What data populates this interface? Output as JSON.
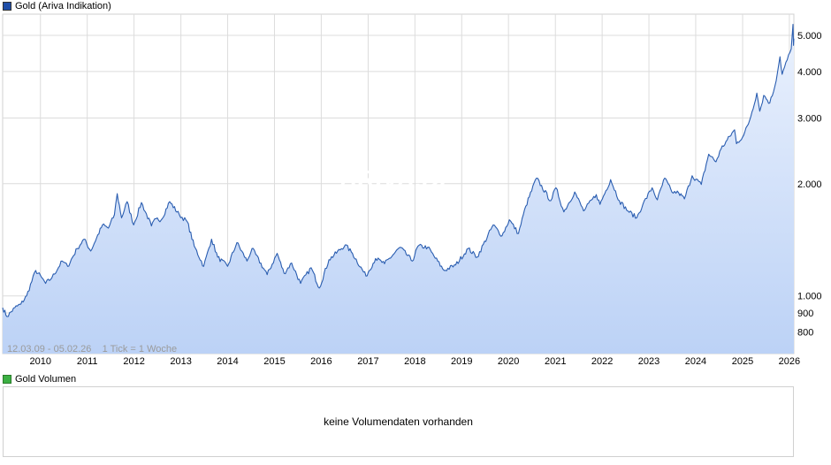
{
  "legend": {
    "main_label": "Gold (Ariva Indikation)",
    "main_color": "#1f4ea8",
    "volume_label": "Gold Volumen",
    "volume_color": "#3cb043"
  },
  "watermark": "ARIVA.DE",
  "range_info": "12.03.09 - 05.02.26    1 Tick = 1 Woche",
  "volume_message": "keine Volumendaten vorhanden",
  "colors": {
    "line": "#2a5db0",
    "fill_top": "#eaf1fd",
    "fill_bottom": "#bcd2f6",
    "grid": "#dcdcdc"
  },
  "chart_data": {
    "type": "area",
    "title": "Gold (Ariva Indikation)",
    "yscale": "log",
    "ylim": [
      700,
      5700
    ],
    "xlim": [
      "2009-03-12",
      "2026-02-05"
    ],
    "grid": true,
    "yticks": [
      {
        "value": 800,
        "label": "800"
      },
      {
        "value": 900,
        "label": "900"
      },
      {
        "value": 1000,
        "label": "1.000"
      },
      {
        "value": 2000,
        "label": "2.000"
      },
      {
        "value": 3000,
        "label": "3.000"
      },
      {
        "value": 4000,
        "label": "4.000"
      },
      {
        "value": 5000,
        "label": "5.000"
      }
    ],
    "xticks": [
      "2010",
      "2011",
      "2012",
      "2013",
      "2014",
      "2015",
      "2016",
      "2017",
      "2018",
      "2019",
      "2020",
      "2021",
      "2022",
      "2023",
      "2024",
      "2025",
      "2026"
    ],
    "series": [
      {
        "name": "Gold",
        "points": [
          [
            "2009-03-12",
            930
          ],
          [
            "2009-04-15",
            880
          ],
          [
            "2009-06-15",
            930
          ],
          [
            "2009-08-01",
            950
          ],
          [
            "2009-09-15",
            1000
          ],
          [
            "2009-11-25",
            1170
          ],
          [
            "2010-01-10",
            1120
          ],
          [
            "2010-02-10",
            1080
          ],
          [
            "2010-04-01",
            1120
          ],
          [
            "2010-06-20",
            1240
          ],
          [
            "2010-08-01",
            1200
          ],
          [
            "2010-10-15",
            1340
          ],
          [
            "2010-12-07",
            1420
          ],
          [
            "2011-01-28",
            1320
          ],
          [
            "2011-04-30",
            1550
          ],
          [
            "2011-06-15",
            1520
          ],
          [
            "2011-08-01",
            1650
          ],
          [
            "2011-08-23",
            1880
          ],
          [
            "2011-09-26",
            1620
          ],
          [
            "2011-11-08",
            1790
          ],
          [
            "2011-12-29",
            1550
          ],
          [
            "2012-02-28",
            1780
          ],
          [
            "2012-05-16",
            1540
          ],
          [
            "2012-06-20",
            1610
          ],
          [
            "2012-08-01",
            1600
          ],
          [
            "2012-10-05",
            1790
          ],
          [
            "2012-12-20",
            1650
          ],
          [
            "2013-02-20",
            1580
          ],
          [
            "2013-04-15",
            1360
          ],
          [
            "2013-06-28",
            1200
          ],
          [
            "2013-08-28",
            1420
          ],
          [
            "2013-10-15",
            1270
          ],
          [
            "2013-12-31",
            1200
          ],
          [
            "2014-03-14",
            1390
          ],
          [
            "2014-06-01",
            1240
          ],
          [
            "2014-07-10",
            1340
          ],
          [
            "2014-11-05",
            1140
          ],
          [
            "2015-01-22",
            1300
          ],
          [
            "2015-03-17",
            1150
          ],
          [
            "2015-05-15",
            1225
          ],
          [
            "2015-07-24",
            1080
          ],
          [
            "2015-10-14",
            1190
          ],
          [
            "2015-12-17",
            1050
          ],
          [
            "2016-03-01",
            1250
          ],
          [
            "2016-07-06",
            1370
          ],
          [
            "2016-09-01",
            1300
          ],
          [
            "2016-12-15",
            1130
          ],
          [
            "2017-02-28",
            1260
          ],
          [
            "2017-05-09",
            1220
          ],
          [
            "2017-09-08",
            1350
          ],
          [
            "2017-12-12",
            1240
          ],
          [
            "2018-01-25",
            1360
          ],
          [
            "2018-04-11",
            1350
          ],
          [
            "2018-08-16",
            1170
          ],
          [
            "2018-11-15",
            1210
          ],
          [
            "2019-02-20",
            1340
          ],
          [
            "2019-05-01",
            1270
          ],
          [
            "2019-09-04",
            1550
          ],
          [
            "2019-11-12",
            1450
          ],
          [
            "2020-01-08",
            1600
          ],
          [
            "2020-03-19",
            1470
          ],
          [
            "2020-05-15",
            1740
          ],
          [
            "2020-08-06",
            2070
          ],
          [
            "2020-11-25",
            1800
          ],
          [
            "2021-01-06",
            1950
          ],
          [
            "2021-03-08",
            1680
          ],
          [
            "2021-06-01",
            1900
          ],
          [
            "2021-08-09",
            1690
          ],
          [
            "2021-11-16",
            1870
          ],
          [
            "2021-12-15",
            1760
          ],
          [
            "2022-03-08",
            2050
          ],
          [
            "2022-05-15",
            1800
          ],
          [
            "2022-07-21",
            1690
          ],
          [
            "2022-09-28",
            1620
          ],
          [
            "2022-11-15",
            1760
          ],
          [
            "2023-01-26",
            1950
          ],
          [
            "2023-03-08",
            1810
          ],
          [
            "2023-05-04",
            2070
          ],
          [
            "2023-06-29",
            1900
          ],
          [
            "2023-08-21",
            1890
          ],
          [
            "2023-10-05",
            1820
          ],
          [
            "2023-12-04",
            2100
          ],
          [
            "2024-02-14",
            1990
          ],
          [
            "2024-04-12",
            2400
          ],
          [
            "2024-06-07",
            2290
          ],
          [
            "2024-07-17",
            2480
          ],
          [
            "2024-10-30",
            2790
          ],
          [
            "2024-11-14",
            2560
          ],
          [
            "2025-01-10",
            2700
          ],
          [
            "2025-02-24",
            2950
          ],
          [
            "2025-04-22",
            3500
          ],
          [
            "2025-05-15",
            3130
          ],
          [
            "2025-06-15",
            3450
          ],
          [
            "2025-08-01",
            3290
          ],
          [
            "2025-09-10",
            3650
          ],
          [
            "2025-10-20",
            4380
          ],
          [
            "2025-11-05",
            3930
          ],
          [
            "2025-12-15",
            4300
          ],
          [
            "2026-01-15",
            4600
          ],
          [
            "2026-01-29",
            5350
          ],
          [
            "2026-02-02",
            4700
          ],
          [
            "2026-02-05",
            4900
          ]
        ]
      }
    ]
  }
}
